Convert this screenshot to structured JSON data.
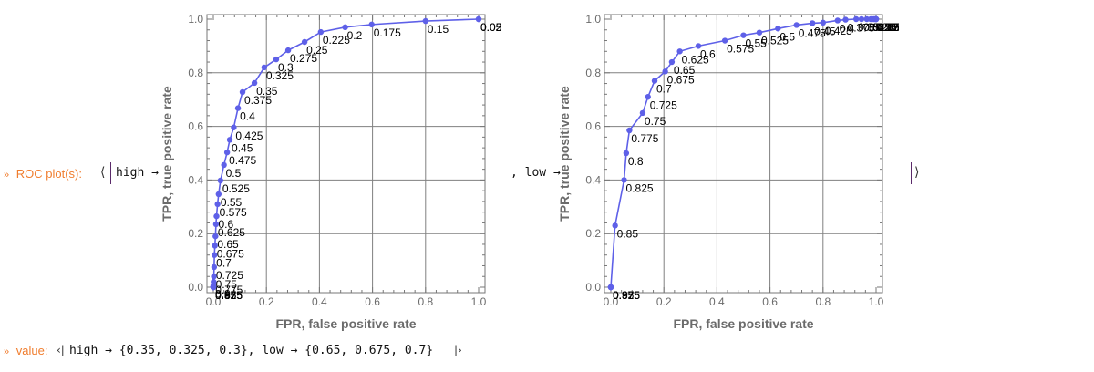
{
  "output1": {
    "prefix": "»",
    "label": "ROC plot(s):",
    "open_bracket": "⟨",
    "key_high": "high →",
    "sep_low": ", low →",
    "close_bracket": "⟩"
  },
  "output2": {
    "prefix": "»",
    "label": "value:",
    "open": "‹|",
    "text": "high → {0.35, 0.325, 0.3}, low → {0.65, 0.675, 0.7}",
    "close": "|›"
  },
  "colors": {
    "label_orange": "#f07d2e",
    "series_blue": "#5e60e8",
    "grid": "#808080",
    "axis_text": "#6b6b6b"
  },
  "chart_data": [
    {
      "type": "line",
      "title": "",
      "name": "high",
      "xlabel": "FPR, false positive rate",
      "ylabel": "TPR, true positive rate",
      "xlim": [
        0,
        1
      ],
      "ylim": [
        0,
        1
      ],
      "xticks": [
        "0.0",
        "0.2",
        "0.4",
        "0.6",
        "0.8",
        "1.0"
      ],
      "yticks": [
        "0.0",
        "0.2",
        "0.4",
        "0.6",
        "0.8",
        "1.0"
      ],
      "grid": true,
      "series": [
        {
          "name": "high",
          "points": [
            {
              "fpr": 1.0,
              "tpr": 1.0,
              "label": "0.025"
            },
            {
              "fpr": 1.0,
              "tpr": 1.0,
              "label": "0.05"
            },
            {
              "fpr": 0.8,
              "tpr": 0.993,
              "label": "0.15"
            },
            {
              "fpr": 0.597,
              "tpr": 0.98,
              "label": "0.175"
            },
            {
              "fpr": 0.497,
              "tpr": 0.97,
              "label": "0.2"
            },
            {
              "fpr": 0.405,
              "tpr": 0.952,
              "label": "0.225"
            },
            {
              "fpr": 0.344,
              "tpr": 0.915,
              "label": "0.25"
            },
            {
              "fpr": 0.282,
              "tpr": 0.884,
              "label": "0.275"
            },
            {
              "fpr": 0.237,
              "tpr": 0.85,
              "label": "0.3"
            },
            {
              "fpr": 0.192,
              "tpr": 0.82,
              "label": "0.325"
            },
            {
              "fpr": 0.155,
              "tpr": 0.762,
              "label": "0.35"
            },
            {
              "fpr": 0.11,
              "tpr": 0.728,
              "label": "0.375"
            },
            {
              "fpr": 0.093,
              "tpr": 0.668,
              "label": "0.4"
            },
            {
              "fpr": 0.077,
              "tpr": 0.596,
              "label": "0.425"
            },
            {
              "fpr": 0.062,
              "tpr": 0.55,
              "label": "0.45"
            },
            {
              "fpr": 0.052,
              "tpr": 0.503,
              "label": "0.475"
            },
            {
              "fpr": 0.04,
              "tpr": 0.456,
              "label": "0.5"
            },
            {
              "fpr": 0.027,
              "tpr": 0.398,
              "label": "0.525"
            },
            {
              "fpr": 0.02,
              "tpr": 0.347,
              "label": "0.55"
            },
            {
              "fpr": 0.016,
              "tpr": 0.31,
              "label": "0.575"
            },
            {
              "fpr": 0.012,
              "tpr": 0.265,
              "label": "0.6"
            },
            {
              "fpr": 0.01,
              "tpr": 0.235,
              "label": "0.625"
            },
            {
              "fpr": 0.008,
              "tpr": 0.19,
              "label": "0.65"
            },
            {
              "fpr": 0.006,
              "tpr": 0.155,
              "label": "0.675"
            },
            {
              "fpr": 0.004,
              "tpr": 0.12,
              "label": "0.7"
            },
            {
              "fpr": 0.003,
              "tpr": 0.075,
              "label": "0.725"
            },
            {
              "fpr": 0.002,
              "tpr": 0.04,
              "label": "0.75"
            },
            {
              "fpr": 0.001,
              "tpr": 0.02,
              "label": "0.775"
            },
            {
              "fpr": 0.0,
              "tpr": 0.005,
              "label": "0.8"
            },
            {
              "fpr": 0.0,
              "tpr": 0.0,
              "label": "0.825"
            },
            {
              "fpr": 0.0,
              "tpr": 0.0,
              "label": "0.85"
            },
            {
              "fpr": 0.0,
              "tpr": 0.0,
              "label": "0.875"
            },
            {
              "fpr": 0.0,
              "tpr": 0.0,
              "label": "0.9"
            },
            {
              "fpr": 0.0,
              "tpr": 0.0,
              "label": "0.925"
            },
            {
              "fpr": 0.0,
              "tpr": 0.0,
              "label": "0.95"
            },
            {
              "fpr": 0.0,
              "tpr": 0.0,
              "label": "0.975"
            }
          ]
        }
      ]
    },
    {
      "type": "line",
      "title": "",
      "name": "low",
      "xlabel": "FPR, false positive rate",
      "ylabel": "TPR, true positive rate",
      "xlim": [
        0,
        1
      ],
      "ylim": [
        0,
        1
      ],
      "xticks": [
        "0.0",
        "0.2",
        "0.4",
        "0.6",
        "0.8",
        "1.0"
      ],
      "yticks": [
        "0.0",
        "0.2",
        "0.4",
        "0.6",
        "0.8",
        "1.0"
      ],
      "grid": true,
      "series": [
        {
          "name": "low",
          "points": [
            {
              "fpr": 0.0,
              "tpr": 0.0,
              "label": "0.975"
            },
            {
              "fpr": 0.0,
              "tpr": 0.0,
              "label": "0.95"
            },
            {
              "fpr": 0.0,
              "tpr": 0.0,
              "label": "0.925"
            },
            {
              "fpr": 0.0,
              "tpr": 0.0,
              "label": "0.9"
            },
            {
              "fpr": 0.0,
              "tpr": 0.0,
              "label": "0.875"
            },
            {
              "fpr": 0.016,
              "tpr": 0.23,
              "label": "0.85"
            },
            {
              "fpr": 0.05,
              "tpr": 0.4,
              "label": "0.825"
            },
            {
              "fpr": 0.058,
              "tpr": 0.5,
              "label": "0.8"
            },
            {
              "fpr": 0.07,
              "tpr": 0.585,
              "label": "0.775"
            },
            {
              "fpr": 0.12,
              "tpr": 0.65,
              "label": "0.75"
            },
            {
              "fpr": 0.14,
              "tpr": 0.71,
              "label": "0.725"
            },
            {
              "fpr": 0.165,
              "tpr": 0.77,
              "label": "0.7"
            },
            {
              "fpr": 0.205,
              "tpr": 0.805,
              "label": "0.675"
            },
            {
              "fpr": 0.23,
              "tpr": 0.84,
              "label": "0.65"
            },
            {
              "fpr": 0.26,
              "tpr": 0.88,
              "label": "0.625"
            },
            {
              "fpr": 0.33,
              "tpr": 0.9,
              "label": "0.6"
            },
            {
              "fpr": 0.43,
              "tpr": 0.92,
              "label": "0.575"
            },
            {
              "fpr": 0.5,
              "tpr": 0.94,
              "label": "0.55"
            },
            {
              "fpr": 0.56,
              "tpr": 0.95,
              "label": "0.525"
            },
            {
              "fpr": 0.63,
              "tpr": 0.965,
              "label": "0.5"
            },
            {
              "fpr": 0.7,
              "tpr": 0.978,
              "label": "0.475"
            },
            {
              "fpr": 0.76,
              "tpr": 0.985,
              "label": "0.45"
            },
            {
              "fpr": 0.8,
              "tpr": 0.987,
              "label": "0.425"
            },
            {
              "fpr": 0.855,
              "tpr": 0.995,
              "label": "0.4"
            },
            {
              "fpr": 0.885,
              "tpr": 0.998,
              "label": "0.375"
            },
            {
              "fpr": 0.925,
              "tpr": 1.0,
              "label": "0.35"
            },
            {
              "fpr": 0.945,
              "tpr": 1.0,
              "label": "0.325"
            },
            {
              "fpr": 0.965,
              "tpr": 1.0,
              "label": "0.3"
            },
            {
              "fpr": 0.98,
              "tpr": 1.0,
              "label": "0.275"
            },
            {
              "fpr": 0.99,
              "tpr": 1.0,
              "label": "0.25"
            },
            {
              "fpr": 0.995,
              "tpr": 1.0,
              "label": "0.225"
            },
            {
              "fpr": 1.0,
              "tpr": 1.0,
              "label": "0.2"
            },
            {
              "fpr": 1.0,
              "tpr": 1.0,
              "label": "0.175"
            },
            {
              "fpr": 1.0,
              "tpr": 1.0,
              "label": "0.15"
            },
            {
              "fpr": 1.0,
              "tpr": 1.0,
              "label": "0.05"
            },
            {
              "fpr": 1.0,
              "tpr": 1.0,
              "label": "0.025"
            }
          ]
        }
      ]
    }
  ]
}
